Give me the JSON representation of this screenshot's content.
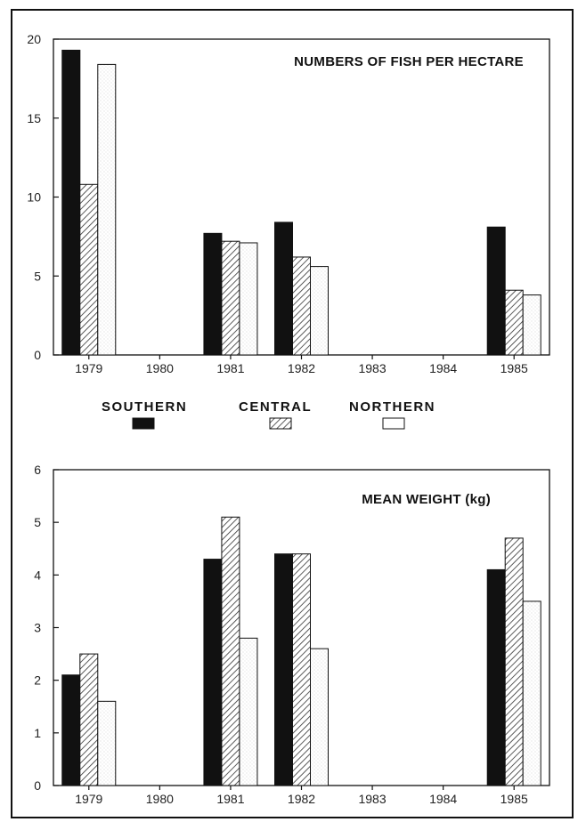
{
  "legend": [
    {
      "label": "SOUTHERN",
      "style": "solid",
      "color": "#111111"
    },
    {
      "label": "CENTRAL",
      "style": "hatched",
      "color": "#555555"
    },
    {
      "label": "NORTHERN",
      "style": "open",
      "color": "#ffffff"
    }
  ],
  "chart_data": [
    {
      "type": "bar",
      "title": "NUMBERS OF FISH PER HECTARE",
      "categories": [
        "1979",
        "1980",
        "1981",
        "1982",
        "1983",
        "1984",
        "1985"
      ],
      "ylim": [
        0,
        20
      ],
      "yticks": [
        0,
        5,
        10,
        15,
        20
      ],
      "series": [
        {
          "name": "SOUTHERN",
          "values": [
            19.3,
            null,
            7.7,
            8.4,
            null,
            null,
            8.1
          ]
        },
        {
          "name": "CENTRAL",
          "values": [
            10.8,
            null,
            7.2,
            6.2,
            null,
            null,
            4.1
          ]
        },
        {
          "name": "NORTHERN",
          "values": [
            18.4,
            null,
            7.1,
            5.6,
            null,
            null,
            3.8
          ]
        }
      ]
    },
    {
      "type": "bar",
      "title": "MEAN WEIGHT (kg)",
      "categories": [
        "1979",
        "1980",
        "1981",
        "1982",
        "1983",
        "1984",
        "1985"
      ],
      "ylim": [
        0,
        6
      ],
      "yticks": [
        0,
        1,
        2,
        3,
        4,
        5,
        6
      ],
      "series": [
        {
          "name": "SOUTHERN",
          "values": [
            2.1,
            null,
            4.3,
            4.4,
            null,
            null,
            4.1
          ]
        },
        {
          "name": "CENTRAL",
          "values": [
            2.5,
            null,
            5.1,
            4.4,
            null,
            null,
            4.7
          ]
        },
        {
          "name": "NORTHERN",
          "values": [
            1.6,
            null,
            2.8,
            2.6,
            null,
            null,
            3.5
          ]
        }
      ]
    }
  ]
}
